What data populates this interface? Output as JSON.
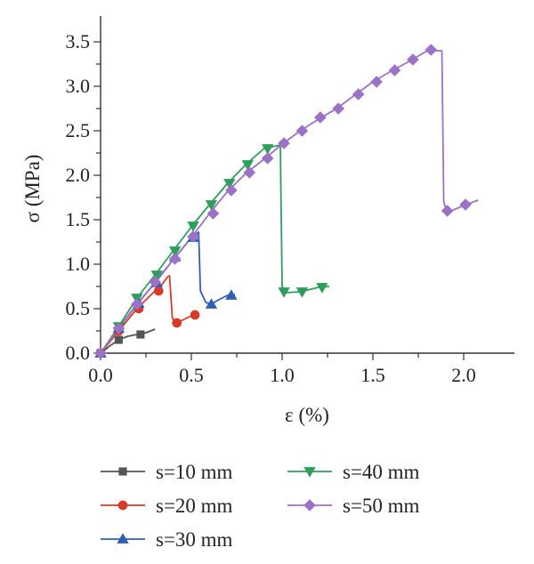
{
  "chart_data": {
    "type": "line",
    "xlabel": "ε (%)",
    "ylabel": "σ (MPa)",
    "xlim": [
      0,
      2.2
    ],
    "ylim": [
      0,
      3.7
    ],
    "xticks": [
      "0.0",
      "0.5",
      "1.0",
      "1.5",
      "2.0"
    ],
    "xtick_values": [
      0,
      0.5,
      1.0,
      1.5,
      2.0
    ],
    "yticks": [
      "0.0",
      "0.5",
      "1.0",
      "1.5",
      "2.0",
      "2.5",
      "3.0",
      "3.5"
    ],
    "ytick_values": [
      0,
      0.5,
      1.0,
      1.5,
      2.0,
      2.5,
      3.0,
      3.5
    ],
    "grid": false,
    "legend_placement": "bottom",
    "series": [
      {
        "name": "s=10 mm",
        "color": "#555555",
        "marker": "square",
        "line": [
          [
            0,
            0
          ],
          [
            0.05,
            0.08
          ],
          [
            0.1,
            0.15
          ],
          [
            0.15,
            0.19
          ],
          [
            0.2,
            0.21
          ],
          [
            0.25,
            0.23
          ],
          [
            0.3,
            0.27
          ]
        ],
        "markers": [
          [
            0,
            0
          ],
          [
            0.1,
            0.15
          ],
          [
            0.22,
            0.21
          ]
        ]
      },
      {
        "name": "s=20 mm",
        "color": "#d83a2a",
        "marker": "circle",
        "line": [
          [
            0,
            0
          ],
          [
            0.1,
            0.25
          ],
          [
            0.2,
            0.5
          ],
          [
            0.3,
            0.7
          ],
          [
            0.33,
            0.75
          ],
          [
            0.37,
            0.86
          ],
          [
            0.38,
            0.87
          ],
          [
            0.395,
            0.4
          ],
          [
            0.41,
            0.34
          ],
          [
            0.45,
            0.37
          ],
          [
            0.5,
            0.42
          ],
          [
            0.52,
            0.43
          ]
        ],
        "markers": [
          [
            0,
            0
          ],
          [
            0.1,
            0.25
          ],
          [
            0.21,
            0.5
          ],
          [
            0.32,
            0.7
          ],
          [
            0.42,
            0.34
          ],
          [
            0.52,
            0.43
          ]
        ]
      },
      {
        "name": "s=30 mm",
        "color": "#2e5fb3",
        "marker": "triangle-up",
        "line": [
          [
            0,
            0
          ],
          [
            0.1,
            0.28
          ],
          [
            0.2,
            0.55
          ],
          [
            0.3,
            0.79
          ],
          [
            0.4,
            1.05
          ],
          [
            0.5,
            1.3
          ],
          [
            0.54,
            1.36
          ],
          [
            0.55,
            0.7
          ],
          [
            0.58,
            0.57
          ],
          [
            0.61,
            0.55
          ],
          [
            0.65,
            0.6
          ],
          [
            0.7,
            0.65
          ],
          [
            0.74,
            0.66
          ]
        ],
        "markers": [
          [
            0,
            0
          ],
          [
            0.1,
            0.28
          ],
          [
            0.21,
            0.56
          ],
          [
            0.31,
            0.79
          ],
          [
            0.41,
            1.08
          ],
          [
            0.51,
            1.3
          ],
          [
            0.61,
            0.55
          ],
          [
            0.72,
            0.65
          ]
        ]
      },
      {
        "name": "s=40 mm",
        "color": "#2e9e5b",
        "marker": "triangle-down",
        "line": [
          [
            0,
            0
          ],
          [
            0.1,
            0.3
          ],
          [
            0.2,
            0.62
          ],
          [
            0.3,
            0.88
          ],
          [
            0.4,
            1.15
          ],
          [
            0.5,
            1.42
          ],
          [
            0.6,
            1.67
          ],
          [
            0.7,
            1.91
          ],
          [
            0.8,
            2.12
          ],
          [
            0.9,
            2.3
          ],
          [
            0.99,
            2.34
          ],
          [
            1.0,
            0.75
          ],
          [
            1.02,
            0.68
          ],
          [
            1.1,
            0.69
          ],
          [
            1.2,
            0.74
          ],
          [
            1.26,
            0.75
          ]
        ],
        "markers": [
          [
            0.1,
            0.3
          ],
          [
            0.2,
            0.62
          ],
          [
            0.31,
            0.88
          ],
          [
            0.41,
            1.15
          ],
          [
            0.51,
            1.43
          ],
          [
            0.61,
            1.67
          ],
          [
            0.71,
            1.91
          ],
          [
            0.81,
            2.12
          ],
          [
            0.92,
            2.3
          ],
          [
            1.01,
            0.69
          ],
          [
            1.11,
            0.69
          ],
          [
            1.22,
            0.74
          ]
        ]
      },
      {
        "name": "s=50 mm",
        "color": "#9b72c6",
        "marker": "diamond",
        "line": [
          [
            0,
            0
          ],
          [
            0.1,
            0.28
          ],
          [
            0.2,
            0.54
          ],
          [
            0.3,
            0.8
          ],
          [
            0.4,
            1.05
          ],
          [
            0.5,
            1.3
          ],
          [
            0.6,
            1.57
          ],
          [
            0.7,
            1.82
          ],
          [
            0.8,
            2.02
          ],
          [
            0.9,
            2.18
          ],
          [
            1.0,
            2.35
          ],
          [
            1.1,
            2.5
          ],
          [
            1.2,
            2.63
          ],
          [
            1.3,
            2.75
          ],
          [
            1.4,
            2.9
          ],
          [
            1.5,
            3.05
          ],
          [
            1.6,
            3.17
          ],
          [
            1.7,
            3.28
          ],
          [
            1.8,
            3.4
          ],
          [
            1.88,
            3.4
          ],
          [
            1.89,
            1.7
          ],
          [
            1.91,
            1.58
          ],
          [
            2.0,
            1.66
          ],
          [
            2.08,
            1.72
          ]
        ],
        "markers": [
          [
            0,
            0
          ],
          [
            0.1,
            0.28
          ],
          [
            0.2,
            0.55
          ],
          [
            0.3,
            0.8
          ],
          [
            0.41,
            1.06
          ],
          [
            0.51,
            1.31
          ],
          [
            0.62,
            1.57
          ],
          [
            0.72,
            1.83
          ],
          [
            0.82,
            2.03
          ],
          [
            0.92,
            2.19
          ],
          [
            1.01,
            2.36
          ],
          [
            1.11,
            2.5
          ],
          [
            1.21,
            2.65
          ],
          [
            1.31,
            2.75
          ],
          [
            1.42,
            2.91
          ],
          [
            1.52,
            3.05
          ],
          [
            1.62,
            3.18
          ],
          [
            1.72,
            3.3
          ],
          [
            1.82,
            3.41
          ],
          [
            1.91,
            1.6
          ],
          [
            2.01,
            1.67
          ]
        ]
      }
    ]
  }
}
